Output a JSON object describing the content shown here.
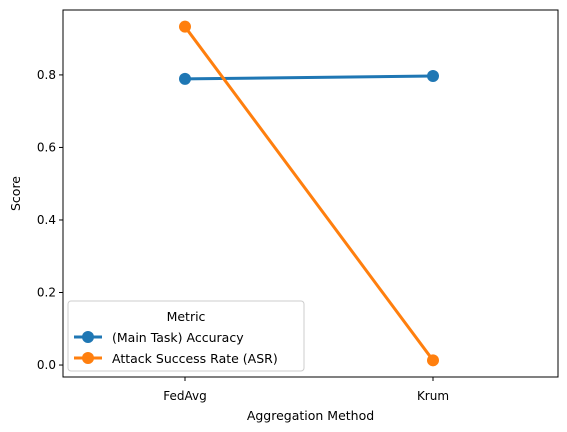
{
  "chart_data": {
    "type": "line",
    "categories": [
      "FedAvg",
      "Krum"
    ],
    "series": [
      {
        "name": "(Main Task) Accuracy",
        "color": "#1f77b4",
        "values": [
          0.789,
          0.797
        ]
      },
      {
        "name": "Attack Success Rate (ASR)",
        "color": "#ff7f0e",
        "values": [
          0.933,
          0.013
        ]
      }
    ],
    "xlabel": "Aggregation Method",
    "ylabel": "Score",
    "ylim": [
      -0.033,
      0.979
    ],
    "yticks": [
      "0.0",
      "0.2",
      "0.4",
      "0.6",
      "0.8"
    ],
    "grid": false,
    "legend": {
      "title": "Metric",
      "placement": "lower-left"
    }
  }
}
